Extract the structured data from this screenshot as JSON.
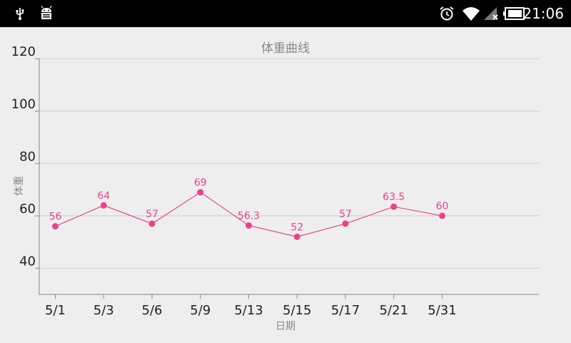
{
  "status_bar": {
    "left_icons": [
      "usb-icon",
      "android-debug-icon"
    ],
    "right_icons": [
      "alarm-icon",
      "wifi-icon",
      "no-signal-icon",
      "battery-icon"
    ],
    "time": "21:06",
    "colors": {
      "background": "#000000",
      "foreground": "#ffffff"
    }
  },
  "chart_data": {
    "type": "line",
    "title": "体重曲线",
    "xlabel": "日期",
    "ylabel": "体重",
    "categories": [
      "5/1",
      "5/3",
      "5/6",
      "5/9",
      "5/13",
      "5/15",
      "5/17",
      "5/21",
      "5/31"
    ],
    "series": [
      {
        "values": [
          56,
          64,
          57,
          69,
          56.3,
          52,
          57,
          63.5,
          60
        ],
        "labels": [
          "56",
          "64",
          "57",
          "69",
          "56.3",
          "52",
          "57",
          "63.5",
          "60"
        ],
        "color": "#e8438f"
      }
    ],
    "yticks": [
      "40",
      "60",
      "80",
      "100",
      "120"
    ],
    "ylim": [
      30,
      120
    ],
    "grid": true,
    "colors": {
      "background": "#eeeeee",
      "grid": "#cccccc",
      "axis": "#888888"
    }
  }
}
